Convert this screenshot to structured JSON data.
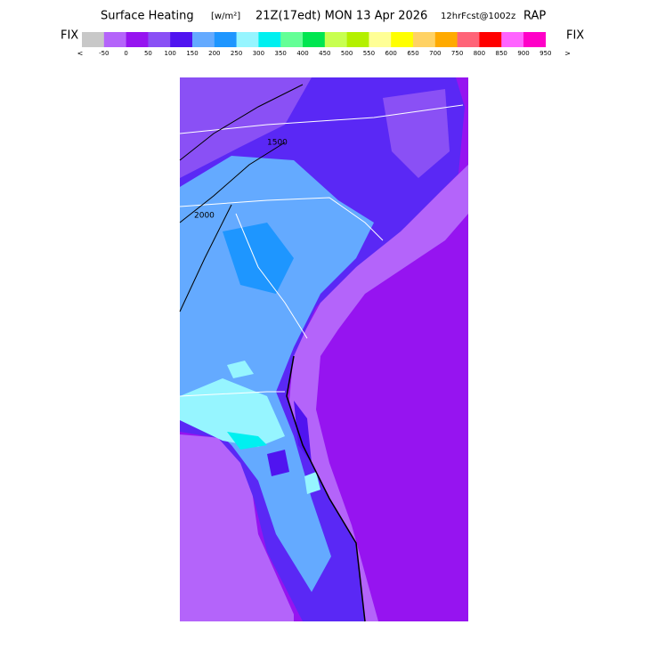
{
  "header": {
    "title": "Surface Heating",
    "units": "[w/m²]",
    "valid": "21Z(17edt) MON 13 Apr 2026",
    "forecast": "12hrFcst@1002z",
    "model": "RAP"
  },
  "legend": {
    "fix_left": "FIX",
    "fix_right": "FIX",
    "below": "<",
    "above": ">",
    "colors": [
      "#c8c8c8",
      "#b464fa",
      "#9614f0",
      "#8a50f5",
      "#5014f0",
      "#64aaff",
      "#1e96ff",
      "#96f5ff",
      "#00f0f0",
      "#64ff96",
      "#00e650",
      "#c8ff50",
      "#b4f000",
      "#ffff96",
      "#ffff00",
      "#ffd264",
      "#ffaa00",
      "#ff6478",
      "#ff0000",
      "#ff64ff",
      "#ff00c8"
    ],
    "labels": [
      "-50",
      "0",
      "50",
      "100",
      "150",
      "200",
      "250",
      "300",
      "350",
      "400",
      "450",
      "500",
      "550",
      "600",
      "650",
      "700",
      "750",
      "800",
      "850",
      "900",
      "950"
    ]
  },
  "map": {
    "contour_labels": [
      "2000",
      "1500"
    ]
  }
}
